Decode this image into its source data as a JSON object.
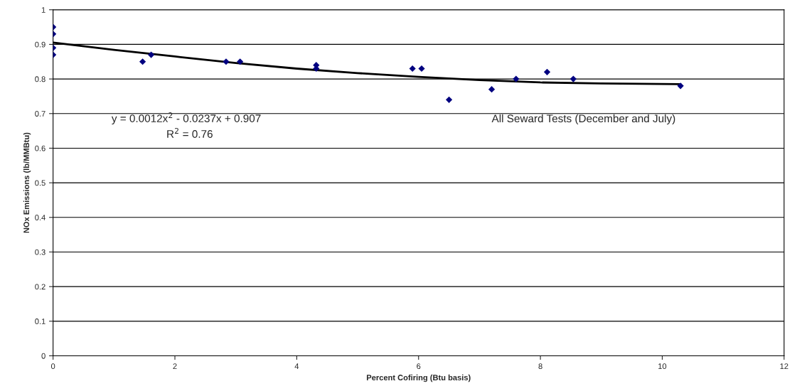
{
  "chart_data": {
    "type": "scatter",
    "xlabel": "Percent Cofiring (Btu basis)",
    "ylabel": "NOx Emissions (lb/MMBtu)",
    "xlim": [
      0,
      12
    ],
    "xticks": [
      0,
      2,
      4,
      6,
      8,
      10,
      12
    ],
    "ylim": [
      0,
      1
    ],
    "yticks": [
      0,
      0.1,
      0.2,
      0.3,
      0.4,
      0.5,
      0.6,
      0.7,
      0.8,
      0.9,
      1
    ],
    "grid": "y",
    "marker": "diamond",
    "series": [
      {
        "color": "#000080",
        "x": [
          0,
          0,
          0,
          0,
          1.47,
          1.61,
          2.84,
          3.07,
          4.32,
          4.32,
          5.9,
          6.05,
          6.5,
          7.2,
          7.6,
          8.11,
          8.54,
          10.3
        ],
        "values": [
          0.95,
          0.93,
          0.89,
          0.87,
          0.85,
          0.87,
          0.85,
          0.85,
          0.84,
          0.83,
          0.83,
          0.83,
          0.74,
          0.77,
          0.8,
          0.82,
          0.8,
          0.78
        ]
      },
      {
        "type": "line",
        "color": "#000000",
        "marker": "none",
        "x": [
          0,
          1,
          2,
          3,
          4,
          5,
          6,
          7,
          8,
          9,
          10.3
        ],
        "values": [
          0.905,
          0.884,
          0.865,
          0.846,
          0.83,
          0.817,
          0.806,
          0.797,
          0.79,
          0.787,
          0.785
        ]
      }
    ],
    "annotations": [
      "y = 0.0012x$^{2}$ - 0.0237x + 0.907",
      "R$^{2}$ = 0.76",
      "All Seward Tests (December and July)"
    ]
  }
}
